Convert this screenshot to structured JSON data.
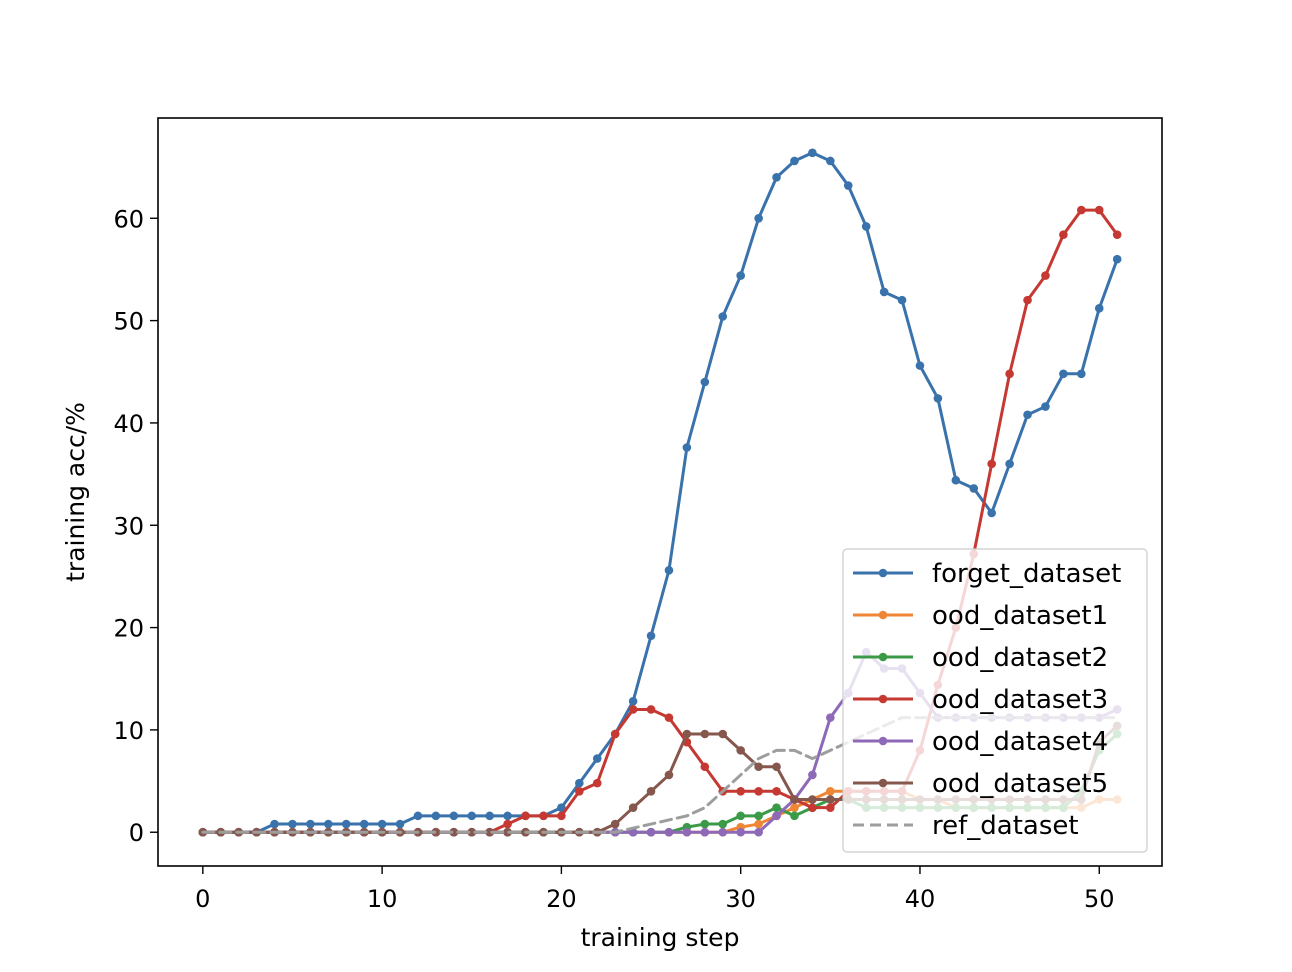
{
  "chart_data": {
    "type": "line",
    "xlabel": "training step",
    "ylabel": "training acc/%",
    "xlim": [
      -2.5,
      53.5
    ],
    "ylim": [
      -3.3,
      69.8
    ],
    "x_ticks": [
      0,
      10,
      20,
      30,
      40,
      50
    ],
    "y_ticks": [
      0,
      10,
      20,
      30,
      40,
      50,
      60
    ],
    "grid": false,
    "legend_position": "lower-right",
    "x": [
      0,
      1,
      2,
      3,
      4,
      5,
      6,
      7,
      8,
      9,
      10,
      11,
      12,
      13,
      14,
      15,
      16,
      17,
      18,
      19,
      20,
      21,
      22,
      23,
      24,
      25,
      26,
      27,
      28,
      29,
      30,
      31,
      32,
      33,
      34,
      35,
      36,
      37,
      38,
      39,
      40,
      41,
      42,
      43,
      44,
      45,
      46,
      47,
      48,
      49,
      50,
      51
    ],
    "series": [
      {
        "name": "forget_dataset",
        "color": "#3a72ab",
        "style": "solid",
        "values": [
          0,
          0,
          0,
          0,
          0.8,
          0.8,
          0.8,
          0.8,
          0.8,
          0.8,
          0.8,
          0.8,
          1.6,
          1.6,
          1.6,
          1.6,
          1.6,
          1.6,
          1.6,
          1.6,
          2.4,
          4.8,
          7.2,
          9.6,
          12.8,
          19.2,
          25.6,
          37.6,
          44.0,
          50.4,
          54.4,
          60.0,
          64.0,
          65.6,
          66.4,
          65.6,
          63.2,
          59.2,
          52.8,
          52.0,
          45.6,
          42.4,
          34.4,
          33.6,
          31.2,
          36.0,
          40.8,
          41.6,
          44.8,
          44.8,
          51.2,
          56.0
        ]
      },
      {
        "name": "ood_dataset1",
        "color": "#ef8636",
        "style": "solid",
        "values": [
          0,
          0,
          0,
          0,
          0,
          0,
          0,
          0,
          0,
          0,
          0,
          0,
          0,
          0,
          0,
          0,
          0,
          0,
          0,
          0,
          0,
          0,
          0,
          0,
          0,
          0,
          0,
          0,
          0,
          0,
          0.5,
          0.8,
          1.6,
          2.4,
          3.2,
          4.0,
          4.0,
          4.0,
          4.0,
          4.0,
          3.2,
          3.2,
          2.4,
          2.4,
          2.4,
          2.4,
          2.4,
          2.4,
          2.4,
          2.4,
          3.2,
          3.2
        ]
      },
      {
        "name": "ood_dataset2",
        "color": "#3b9a47",
        "style": "solid",
        "values": [
          0,
          0,
          0,
          0,
          0,
          0,
          0,
          0,
          0,
          0,
          0,
          0,
          0,
          0,
          0,
          0,
          0,
          0,
          0,
          0,
          0,
          0,
          0,
          0,
          0,
          0,
          0,
          0.5,
          0.8,
          0.8,
          1.6,
          1.6,
          2.4,
          1.6,
          2.4,
          3.2,
          3.2,
          2.4,
          2.4,
          2.4,
          2.4,
          2.4,
          2.4,
          2.4,
          2.4,
          2.4,
          2.4,
          2.4,
          2.4,
          4.0,
          8.0,
          9.6
        ]
      },
      {
        "name": "ood_dataset3",
        "color": "#c53932",
        "style": "solid",
        "values": [
          0,
          0,
          0,
          0,
          0,
          0,
          0,
          0,
          0,
          0,
          0,
          0,
          0,
          0,
          0,
          0,
          0,
          0.8,
          1.6,
          1.6,
          1.6,
          4.0,
          4.8,
          9.6,
          12.0,
          12.0,
          11.2,
          8.8,
          6.4,
          4.0,
          4.0,
          4.0,
          4.0,
          3.2,
          2.4,
          2.4,
          4.0,
          4.0,
          4.0,
          4.0,
          8.0,
          14.4,
          20.0,
          27.2,
          36.0,
          44.8,
          52.0,
          54.4,
          58.4,
          60.8,
          60.8,
          58.4
        ]
      },
      {
        "name": "ood_dataset4",
        "color": "#8d69b8",
        "style": "solid",
        "values": [
          0,
          0,
          0,
          0,
          0,
          0,
          0,
          0,
          0,
          0,
          0,
          0,
          0,
          0,
          0,
          0,
          0,
          0,
          0,
          0,
          0,
          0,
          0,
          0,
          0,
          0,
          0,
          0,
          0,
          0,
          0,
          0,
          1.6,
          3.2,
          5.6,
          11.2,
          13.6,
          17.6,
          16.0,
          16.0,
          13.6,
          11.2,
          11.2,
          11.2,
          11.2,
          11.2,
          11.2,
          11.2,
          11.2,
          11.2,
          11.2,
          12.0
        ]
      },
      {
        "name": "ood_dataset5",
        "color": "#85574d",
        "style": "solid",
        "values": [
          0,
          0,
          0,
          0,
          0,
          0,
          0,
          0,
          0,
          0,
          0,
          0,
          0,
          0,
          0,
          0,
          0,
          0,
          0,
          0,
          0,
          0,
          0,
          0.8,
          2.4,
          4.0,
          5.6,
          9.6,
          9.6,
          9.6,
          8.0,
          6.4,
          6.4,
          3.2,
          3.2,
          3.2,
          3.2,
          3.2,
          3.2,
          3.2,
          3.2,
          3.2,
          3.2,
          3.2,
          3.2,
          3.2,
          3.2,
          3.2,
          3.2,
          3.2,
          8.8,
          10.4
        ]
      },
      {
        "name": "ref_dataset",
        "color": "#9d9d9d",
        "style": "dashed",
        "values": [
          0,
          0,
          0,
          0,
          0,
          0,
          0,
          0,
          0,
          0,
          0,
          0,
          0,
          0,
          0,
          0,
          0,
          0,
          0,
          0,
          0,
          0,
          0,
          0,
          0.4,
          0.8,
          1.2,
          1.6,
          2.4,
          4.0,
          5.6,
          7.2,
          8.0,
          8.0,
          7.2,
          8.0,
          8.8,
          9.6,
          10.4,
          11.2,
          11.2,
          11.2,
          11.2,
          11.2,
          11.2,
          11.2,
          11.2,
          11.2,
          11.2,
          11.2,
          11.2,
          11.2
        ]
      }
    ]
  }
}
